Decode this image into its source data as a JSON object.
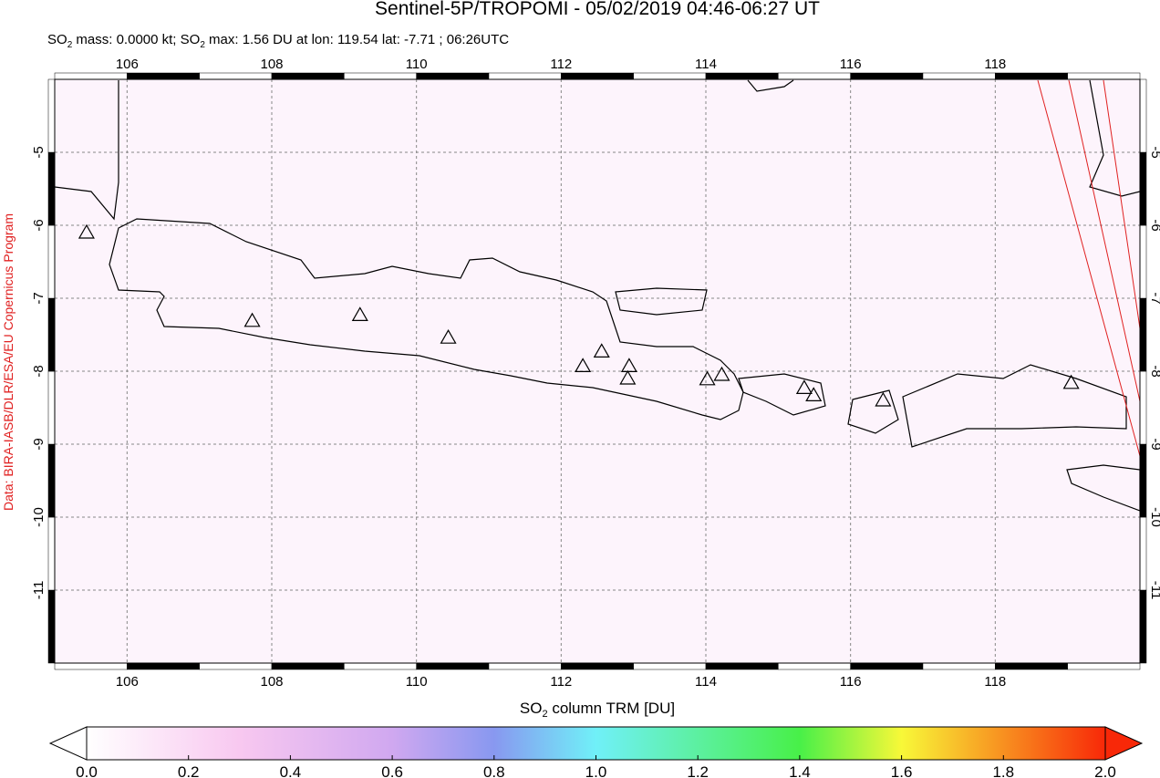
{
  "title": "Sentinel-5P/TROPOMI - 05/02/2019 04:46-06:27 UT",
  "subtitle": [
    "SO",
    "2",
    " mass: 0.0000 kt; SO",
    "2",
    " max: 1.56 DU at lon: 119.54 lat: -7.71 ; 06:26UTC"
  ],
  "credit": "Data: BIRA-IASB/DLR/ESA/EU Copernicus Program",
  "map": {
    "xlim": [
      105,
      120
    ],
    "ylim": [
      -12,
      -4
    ],
    "xticks": [
      106,
      108,
      110,
      112,
      114,
      116,
      118
    ],
    "yticks": [
      -5,
      -6,
      -7,
      -8,
      -9,
      -10,
      -11
    ],
    "volcanoes": [
      [
        105.44,
        -6.1
      ],
      [
        107.73,
        -7.31
      ],
      [
        109.22,
        -7.23
      ],
      [
        110.44,
        -7.54
      ],
      [
        112.3,
        -7.93
      ],
      [
        112.56,
        -7.73
      ],
      [
        112.94,
        -7.93
      ],
      [
        112.92,
        -8.1
      ],
      [
        114.02,
        -8.11
      ],
      [
        114.22,
        -8.05
      ],
      [
        115.36,
        -8.23
      ],
      [
        115.49,
        -8.33
      ],
      [
        116.45,
        -8.4
      ],
      [
        119.05,
        -8.16
      ]
    ]
  },
  "colorbar": {
    "label": [
      "SO",
      "2",
      " column TRM [DU]"
    ],
    "lim": [
      0,
      2
    ],
    "ticks": [
      {
        "value": 0,
        "label": "0.0"
      },
      {
        "value": 0.2,
        "label": "0.2"
      },
      {
        "value": 0.4,
        "label": "0.4"
      },
      {
        "value": 0.6,
        "label": "0.6"
      },
      {
        "value": 0.8,
        "label": "0.8"
      },
      {
        "value": 1,
        "label": "1.0"
      },
      {
        "value": 1.2,
        "label": "1.2"
      },
      {
        "value": 1.4,
        "label": "1.4"
      },
      {
        "value": 1.6,
        "label": "1.6"
      },
      {
        "value": 1.8,
        "label": "1.8"
      },
      {
        "value": 2,
        "label": "2.0"
      }
    ]
  }
}
